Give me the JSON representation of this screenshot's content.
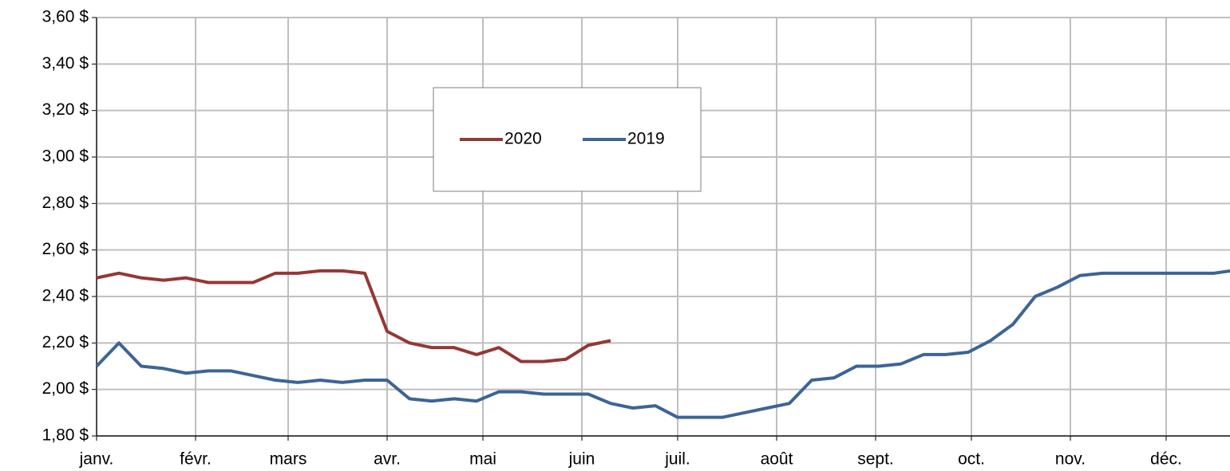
{
  "chart_data": {
    "type": "line",
    "x": [
      0,
      7,
      14,
      21,
      28,
      35,
      42,
      49,
      56,
      63,
      70,
      77,
      84,
      91,
      98,
      105,
      112,
      119,
      126,
      133,
      140,
      147,
      154,
      161,
      168,
      175,
      182,
      189,
      196,
      203,
      210,
      217,
      224,
      231,
      238,
      245,
      252,
      259,
      266,
      273,
      280,
      287,
      294,
      301,
      308,
      315,
      322,
      329,
      336,
      343,
      350,
      355
    ],
    "series": [
      {
        "name": "2020",
        "color": "#953735",
        "values": [
          2.48,
          2.5,
          2.48,
          2.47,
          2.48,
          2.46,
          2.46,
          2.46,
          2.5,
          2.5,
          2.51,
          2.51,
          2.5,
          2.25,
          2.2,
          2.18,
          2.18,
          2.15,
          2.18,
          2.12,
          2.12,
          2.13,
          2.19,
          2.21,
          null,
          null,
          null,
          null,
          null,
          null,
          null,
          null,
          null,
          null,
          null,
          null,
          null,
          null,
          null,
          null,
          null,
          null,
          null,
          null,
          null,
          null,
          null,
          null,
          null,
          null,
          null,
          null
        ]
      },
      {
        "name": "2019",
        "color": "#3d6496",
        "values": [
          2.1,
          2.2,
          2.1,
          2.09,
          2.07,
          2.08,
          2.08,
          2.06,
          2.04,
          2.03,
          2.04,
          2.03,
          2.04,
          2.04,
          1.96,
          1.95,
          1.96,
          1.95,
          1.99,
          1.99,
          1.98,
          1.98,
          1.98,
          1.94,
          1.92,
          1.93,
          1.88,
          1.88,
          1.88,
          1.9,
          1.92,
          1.94,
          2.04,
          2.05,
          2.1,
          2.1,
          2.11,
          2.15,
          2.15,
          2.16,
          2.21,
          2.28,
          2.4,
          2.44,
          2.49,
          2.5,
          2.5,
          2.5,
          2.5,
          2.5,
          2.5,
          2.51
        ]
      }
    ],
    "xlim": [
      0,
      355
    ],
    "xticks": [
      {
        "value": 0,
        "label": "janv."
      },
      {
        "value": 31,
        "label": "févr."
      },
      {
        "value": 60,
        "label": "mars"
      },
      {
        "value": 91,
        "label": "avr."
      },
      {
        "value": 121,
        "label": "mai"
      },
      {
        "value": 152,
        "label": "juin"
      },
      {
        "value": 182,
        "label": "juil."
      },
      {
        "value": 213,
        "label": "août"
      },
      {
        "value": 244,
        "label": "sept."
      },
      {
        "value": 274,
        "label": "oct."
      },
      {
        "value": 305,
        "label": "nov."
      },
      {
        "value": 335,
        "label": "déc."
      }
    ],
    "ylim": [
      1.8,
      3.6
    ],
    "yticks": [
      {
        "value": 1.8,
        "label": "1,80 $"
      },
      {
        "value": 2.0,
        "label": "2,00 $"
      },
      {
        "value": 2.2,
        "label": "2,20 $"
      },
      {
        "value": 2.4,
        "label": "2,40 $"
      },
      {
        "value": 2.6,
        "label": "2,60 $"
      },
      {
        "value": 2.8,
        "label": "2,80 $"
      },
      {
        "value": 3.0,
        "label": "3,00 $"
      },
      {
        "value": 3.2,
        "label": "3,20 $"
      },
      {
        "value": 3.4,
        "label": "3,40 $"
      },
      {
        "value": 3.6,
        "label": "3,60 $"
      }
    ],
    "grid": true
  }
}
